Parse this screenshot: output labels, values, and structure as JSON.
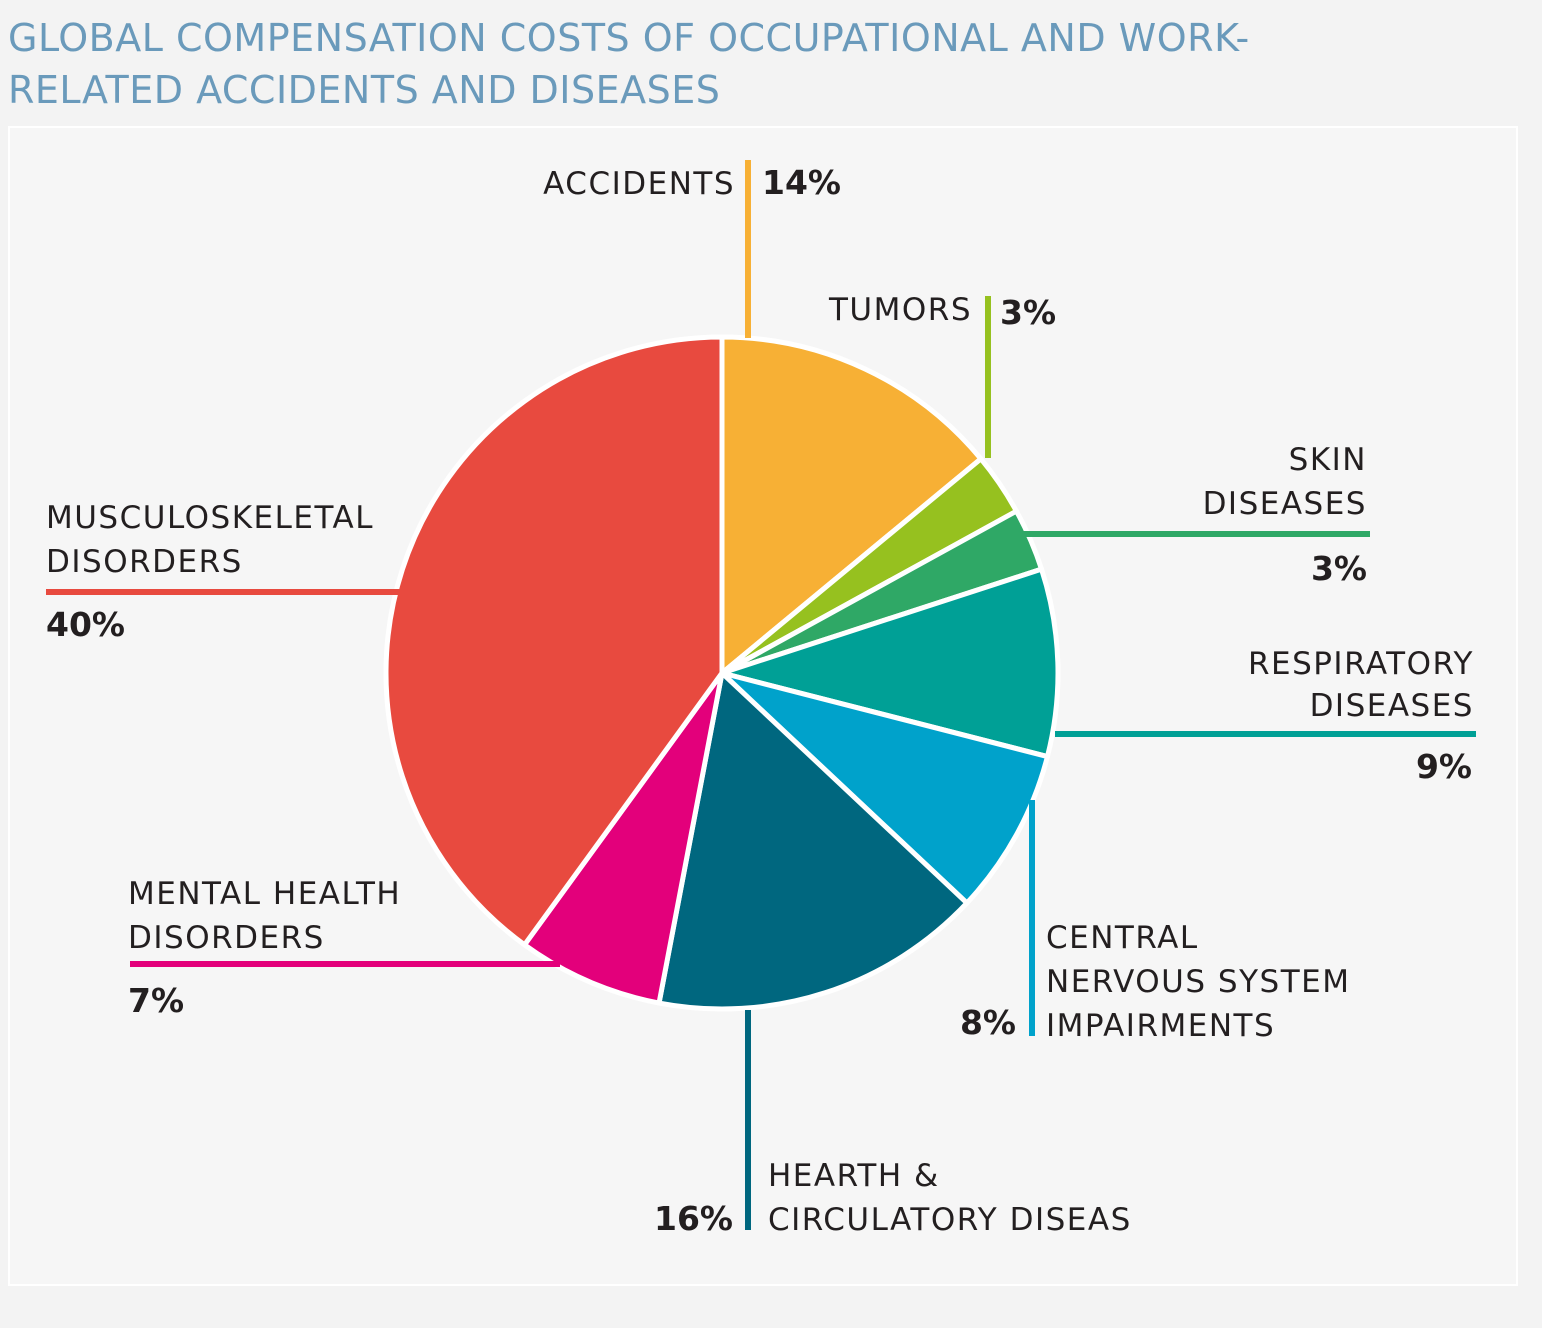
{
  "title_line1": "GLOBAL COMPENSATION COSTS OF OCCUPATIONAL AND WORK-",
  "title_line2": "RELATED ACCIDENTS AND DISEASES",
  "chart_data": {
    "type": "pie",
    "title": "GLOBAL COMPENSATION COSTS OF OCCUPATIONAL AND WORK-RELATED ACCIDENTS AND DISEASES",
    "start_angle_deg": 0,
    "direction": "clockwise",
    "slices": [
      {
        "key": "accidents",
        "label": [
          "ACCIDENTS"
        ],
        "value": 14,
        "value_label": "14%",
        "color": "#f7b035"
      },
      {
        "key": "tumors",
        "label": [
          "TUMORS"
        ],
        "value": 3,
        "value_label": "3%",
        "color": "#96c11f"
      },
      {
        "key": "skin",
        "label": [
          "SKIN",
          "DISEASES"
        ],
        "value": 3,
        "value_label": "3%",
        "color": "#2fa866"
      },
      {
        "key": "respiratory",
        "label": [
          "RESPIRATORY",
          "DISEASES"
        ],
        "value": 9,
        "value_label": "9%",
        "color": "#00a096"
      },
      {
        "key": "cns",
        "label": [
          "CENTRAL",
          "NERVOUS SYSTEM",
          "IMPAIRMENTS"
        ],
        "value": 8,
        "value_label": "8%",
        "color": "#00a2cb"
      },
      {
        "key": "heart",
        "label": [
          "HEARTH &",
          "CIRCULATORY DISEAS"
        ],
        "value": 16,
        "value_label": "16%",
        "color": "#00677f"
      },
      {
        "key": "mental",
        "label": [
          "MENTAL HEALTH",
          "DISORDERS"
        ],
        "value": 7,
        "value_label": "7%",
        "color": "#e3007b"
      },
      {
        "key": "musculoskeletal",
        "label": [
          "MUSCULOSKELETAL",
          "DISORDERS"
        ],
        "value": 40,
        "value_label": "40%",
        "color": "#e84a3f"
      }
    ],
    "legend": "none",
    "grid": false
  }
}
